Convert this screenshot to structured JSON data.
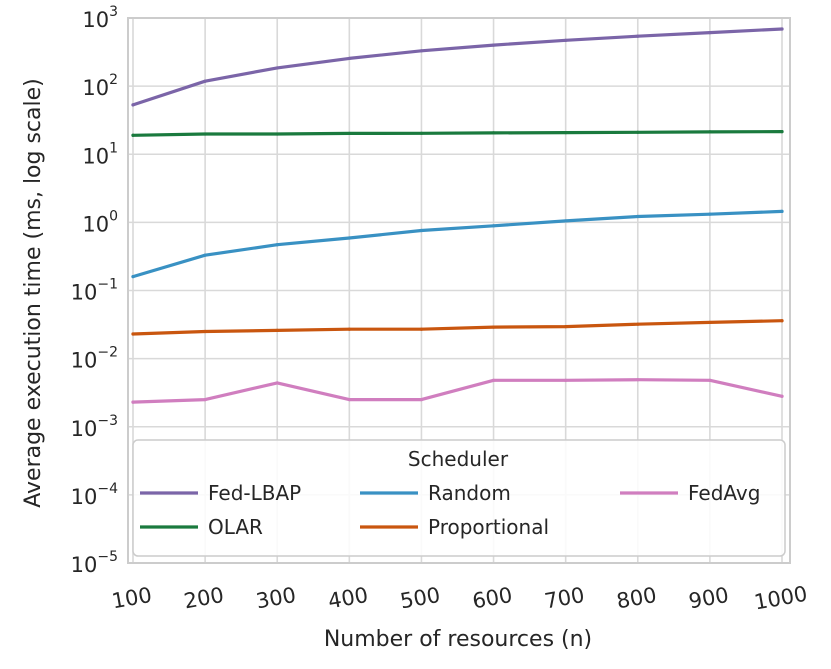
{
  "chart_data": {
    "type": "line",
    "title": "",
    "xlabel": "Number of resources (n)",
    "ylabel": "Average execution time (ms, log scale)",
    "y_scale": "log",
    "ylim": [
      1e-05,
      1000
    ],
    "xlim": [
      100,
      1000
    ],
    "grid": true,
    "x": [
      100,
      200,
      300,
      400,
      500,
      600,
      700,
      800,
      900,
      1000
    ],
    "x_tick_labels": [
      "100",
      "200",
      "300",
      "400",
      "500",
      "600",
      "700",
      "800",
      "900",
      "1000"
    ],
    "y_ticks": [
      {
        "base": "10",
        "exp": "3",
        "value": 1000
      },
      {
        "base": "10",
        "exp": "2",
        "value": 100
      },
      {
        "base": "10",
        "exp": "1",
        "value": 10
      },
      {
        "base": "10",
        "exp": "0",
        "value": 1
      },
      {
        "base": "10",
        "exp": "−1",
        "value": 0.1
      },
      {
        "base": "10",
        "exp": "−2",
        "value": 0.01
      },
      {
        "base": "10",
        "exp": "−3",
        "value": 0.001
      },
      {
        "base": "10",
        "exp": "−4",
        "value": 0.0001
      },
      {
        "base": "10",
        "exp": "−5",
        "value": 1e-05
      }
    ],
    "legend": {
      "title": "Scheduler",
      "location": "lower-center"
    },
    "series": [
      {
        "name": "Fed-LBAP",
        "color": "#7b65a8",
        "values": [
          53,
          118,
          185,
          255,
          330,
          400,
          470,
          540,
          610,
          690
        ]
      },
      {
        "name": "OLAR",
        "color": "#1a7a3e",
        "values": [
          19.0,
          19.8,
          19.8,
          20.2,
          20.3,
          20.6,
          20.8,
          21.0,
          21.3,
          21.5
        ]
      },
      {
        "name": "Random",
        "color": "#3991c3",
        "values": [
          0.16,
          0.33,
          0.47,
          0.59,
          0.76,
          0.89,
          1.05,
          1.22,
          1.32,
          1.45
        ]
      },
      {
        "name": "Proportional",
        "color": "#c9560f",
        "values": [
          0.023,
          0.025,
          0.026,
          0.027,
          0.027,
          0.029,
          0.0295,
          0.032,
          0.034,
          0.036
        ]
      },
      {
        "name": "FedAvg",
        "color": "#d07ebf",
        "values": [
          0.0023,
          0.0025,
          0.0044,
          0.0025,
          0.0025,
          0.0048,
          0.0048,
          0.0049,
          0.0048,
          0.0028
        ]
      }
    ]
  }
}
